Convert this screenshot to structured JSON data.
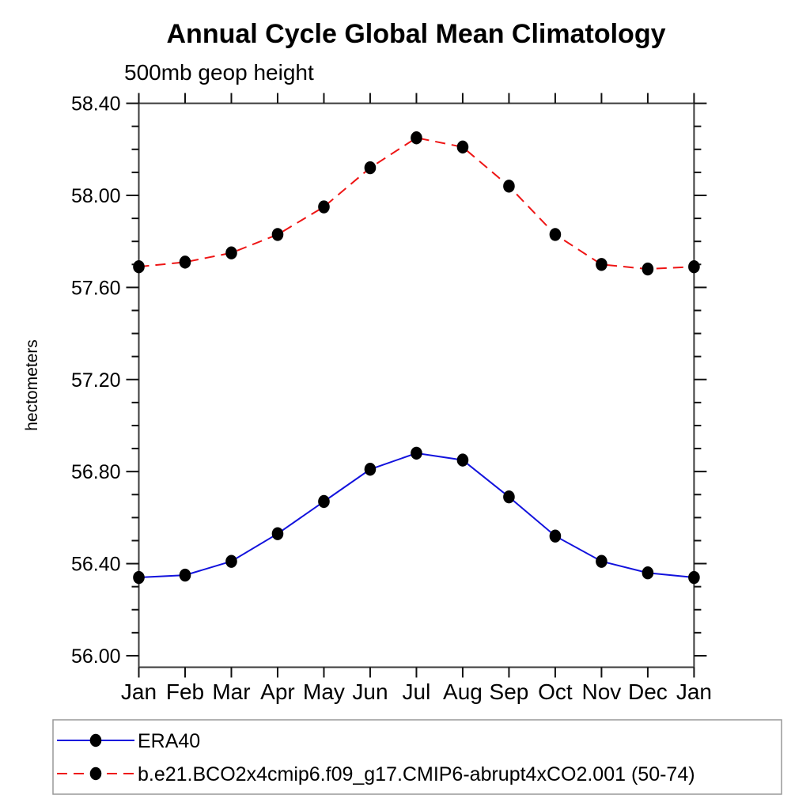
{
  "chart_data": {
    "type": "line",
    "title": "Annual Cycle Global Mean Climatology",
    "subtitle": "500mb geop height",
    "ylabel": "hectometers",
    "x_tick_labels": [
      "Jan",
      "Feb",
      "Mar",
      "Apr",
      "May",
      "Jun",
      "Jul",
      "Aug",
      "Sep",
      "Oct",
      "Nov",
      "Dec",
      "Jan"
    ],
    "y_tick_labels": [
      "56.00",
      "56.40",
      "56.80",
      "57.20",
      "57.60",
      "58.00",
      "58.40"
    ],
    "y_major_step": 0.4,
    "y_minor_step": 0.1,
    "ylim": [
      55.95,
      58.4
    ],
    "grid": false,
    "legend_position": "bottom-left",
    "series": [
      {
        "name": "ERA40",
        "color": "#1212dd",
        "line_style": "solid",
        "marker": "filled-circle",
        "marker_color": "#000000",
        "values": [
          56.34,
          56.35,
          56.41,
          56.53,
          56.67,
          56.81,
          56.88,
          56.85,
          56.69,
          56.52,
          56.41,
          56.36,
          56.34
        ]
      },
      {
        "name": "b.e21.BCO2x4cmip6.f09_g17.CMIP6-abrupt4xCO2.001 (50-74)",
        "color": "#ee1515",
        "line_style": "dashed",
        "marker": "filled-circle",
        "marker_color": "#000000",
        "values": [
          57.69,
          57.71,
          57.75,
          57.83,
          57.95,
          58.12,
          58.25,
          58.21,
          58.04,
          57.83,
          57.7,
          57.68,
          57.69
        ]
      }
    ]
  },
  "style": {
    "axis_color": "#3a3a3a",
    "tick_color": "#111111",
    "legend_border_color": "#999999",
    "text_color": "#000000"
  }
}
